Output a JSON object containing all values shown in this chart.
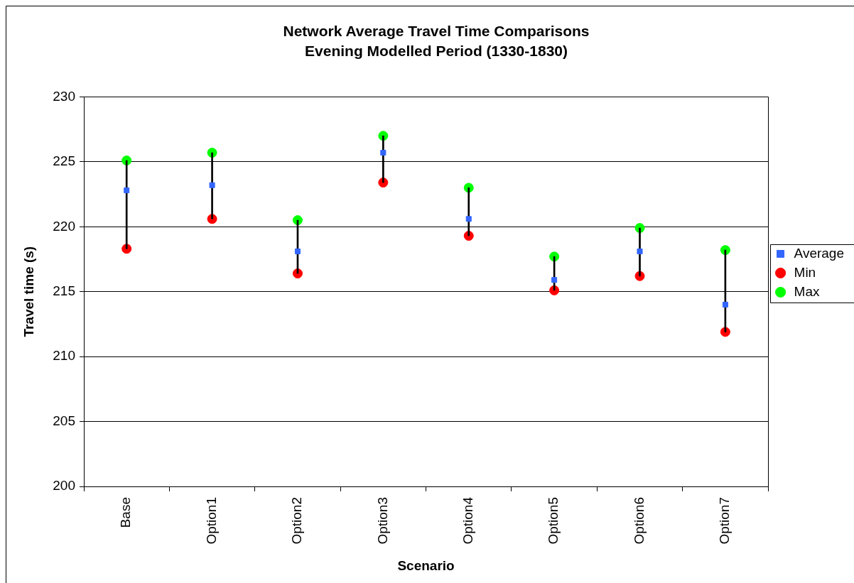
{
  "chart_data": {
    "type": "scatter",
    "title": "Network Average Travel Time Comparisons",
    "subtitle": "Evening Modelled Period (1330-1830)",
    "xlabel": "Scenario",
    "ylabel": "Travel time (s)",
    "categories": [
      "Base",
      "Option1",
      "Option2",
      "Option3",
      "Option4",
      "Option5",
      "Option6",
      "Option7"
    ],
    "series": [
      {
        "name": "Average",
        "color": "#3366ff",
        "marker": "square",
        "values": [
          222.8,
          223.2,
          218.1,
          225.7,
          220.6,
          215.9,
          218.1,
          214.0
        ]
      },
      {
        "name": "Min",
        "color": "#ff0000",
        "marker": "circle",
        "values": [
          218.3,
          220.6,
          216.4,
          223.4,
          219.3,
          215.1,
          216.2,
          211.9
        ]
      },
      {
        "name": "Max",
        "color": "#00ff00",
        "marker": "circle",
        "values": [
          225.1,
          225.7,
          220.5,
          227.0,
          223.0,
          217.7,
          219.9,
          218.2
        ]
      },
      {
        "type": "bar",
        "color": "#000000",
        "base": [
          218.3,
          220.6,
          216.4,
          223.4,
          219.3,
          215.1,
          216.2,
          211.9
        ],
        "values": [
          6.8,
          5.1,
          4.1,
          3.6,
          3.7,
          2.6,
          3.7,
          6.3
        ]
      }
    ],
    "ylim": [
      200,
      230
    ],
    "yticks": [
      200,
      205,
      210,
      215,
      220,
      225,
      230
    ],
    "grid": "y",
    "legend": "right"
  }
}
